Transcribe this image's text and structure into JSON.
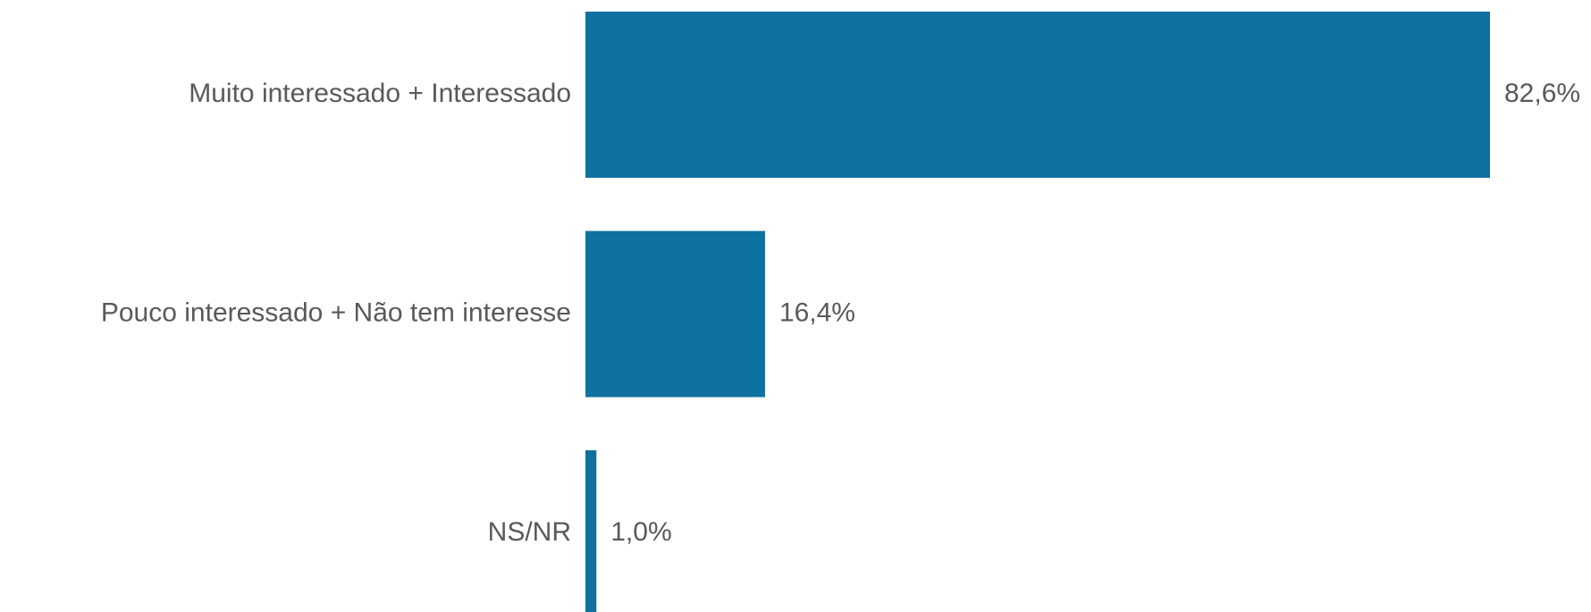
{
  "chart_data": {
    "type": "barh",
    "categories": [
      "Muito interessado + Interessado",
      "Pouco interessado + Não tem interesse",
      "NS/NR"
    ],
    "values": [
      82.6,
      16.4,
      1.0
    ],
    "value_labels": [
      "82,6%",
      "16,4%",
      "1,0%"
    ],
    "color": "#0e71a0"
  }
}
